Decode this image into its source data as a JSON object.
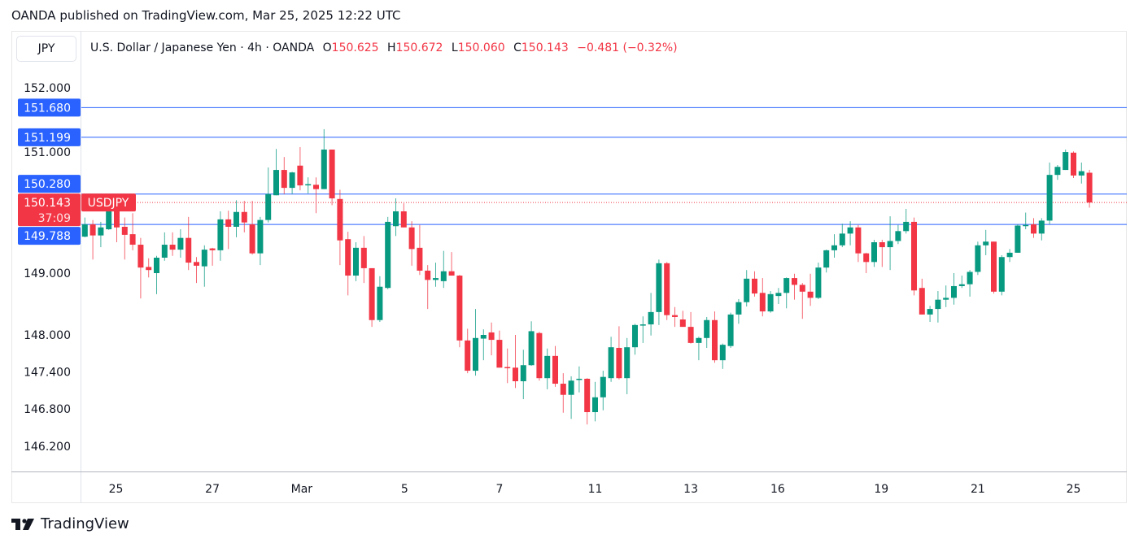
{
  "publisher_line": "OANDA published on TradingView.com, Mar 25, 2025 12:22 UTC",
  "symbol_button": "JPY",
  "legend": {
    "title": "U.S. Dollar / Japanese Yen · 4h · OANDA",
    "o_label": "O",
    "o": "150.625",
    "h_label": "H",
    "h": "150.672",
    "l_label": "L",
    "l": "150.060",
    "c_label": "C",
    "c": "150.143",
    "change": "−0.481 (−0.32%)"
  },
  "footer_logo": "TradingView",
  "colors": {
    "up": "#089981",
    "down": "#f23645",
    "level": "#2962ff",
    "text": "#131722"
  },
  "chart_data": {
    "type": "candlestick",
    "title": "U.S. Dollar / Japanese Yen · 4h · OANDA",
    "ylim": [
      145.68,
      152.53
    ],
    "y_ticks": [
      "152.000",
      "151.000",
      "149.000",
      "148.000",
      "147.400",
      "146.800",
      "146.200"
    ],
    "y_tick_values": [
      152,
      151,
      149,
      148,
      147.4,
      146.8,
      146.2
    ],
    "x_ticks": [
      {
        "label": "25",
        "index": 3.9
      },
      {
        "label": "27",
        "index": 16
      },
      {
        "label": "Mar",
        "index": 27.2
      },
      {
        "label": "5",
        "index": 40.1
      },
      {
        "label": "7",
        "index": 52
      },
      {
        "label": "11",
        "index": 64
      },
      {
        "label": "13",
        "index": 76
      },
      {
        "label": "16",
        "index": 86.9
      },
      {
        "label": "19",
        "index": 99.9
      },
      {
        "label": "21",
        "index": 112
      },
      {
        "label": "25",
        "index": 124
      }
    ],
    "levels": [
      {
        "value": 151.68,
        "label": "151.680"
      },
      {
        "value": 151.199,
        "label": "151.199"
      },
      {
        "value": 150.28,
        "label": "150.280"
      },
      {
        "value": 149.788,
        "label": "149.788"
      }
    ],
    "current": {
      "value": 150.143,
      "label": "150.143",
      "countdown": "37:09",
      "symbol": "USDJPY"
    },
    "ohlc": [
      [
        149.59,
        149.9,
        149.58,
        149.79
      ],
      [
        149.79,
        149.86,
        149.22,
        149.61
      ],
      [
        149.61,
        149.83,
        149.42,
        149.74
      ],
      [
        149.71,
        150.1,
        149.7,
        150.05
      ],
      [
        150.04,
        150.05,
        149.5,
        149.74
      ],
      [
        149.75,
        149.9,
        149.22,
        149.62
      ],
      [
        149.63,
        149.97,
        149.37,
        149.46
      ],
      [
        149.46,
        149.57,
        148.59,
        149.09
      ],
      [
        149.1,
        149.24,
        148.93,
        149.05
      ],
      [
        149.0,
        149.28,
        148.66,
        149.25
      ],
      [
        149.25,
        149.66,
        149.2,
        149.46
      ],
      [
        149.46,
        149.66,
        149.28,
        149.38
      ],
      [
        149.38,
        149.71,
        149.25,
        149.57
      ],
      [
        149.57,
        149.91,
        149.05,
        149.17
      ],
      [
        149.18,
        149.26,
        148.84,
        149.12
      ],
      [
        149.11,
        149.45,
        148.78,
        149.38
      ],
      [
        149.4,
        149.41,
        149.12,
        149.37
      ],
      [
        149.37,
        150.0,
        149.2,
        149.87
      ],
      [
        149.87,
        150.01,
        149.39,
        149.75
      ],
      [
        149.75,
        150.18,
        149.58,
        149.99
      ],
      [
        149.99,
        150.17,
        149.66,
        149.82
      ],
      [
        149.79,
        150.17,
        149.3,
        149.32
      ],
      [
        149.32,
        149.91,
        149.13,
        149.86
      ],
      [
        149.86,
        150.71,
        149.82,
        150.28
      ],
      [
        150.26,
        151.01,
        150.26,
        150.67
      ],
      [
        150.67,
        150.88,
        150.28,
        150.38
      ],
      [
        150.38,
        150.64,
        150.28,
        150.63
      ],
      [
        150.74,
        151.04,
        150.34,
        150.42
      ],
      [
        150.43,
        150.55,
        150.29,
        150.44
      ],
      [
        150.43,
        150.55,
        149.97,
        150.36
      ],
      [
        150.36,
        151.33,
        150.36,
        151.0
      ],
      [
        151.0,
        151.0,
        150.1,
        150.21
      ],
      [
        150.2,
        150.35,
        149.13,
        149.53
      ],
      [
        149.55,
        149.67,
        148.64,
        148.96
      ],
      [
        148.96,
        149.5,
        148.87,
        149.41
      ],
      [
        149.41,
        149.6,
        148.84,
        149.08
      ],
      [
        149.08,
        149.08,
        148.13,
        148.24
      ],
      [
        148.24,
        148.95,
        148.21,
        148.78
      ],
      [
        148.76,
        149.91,
        148.74,
        149.83
      ],
      [
        149.76,
        150.21,
        149.6,
        150.0
      ],
      [
        150.0,
        150.13,
        149.74,
        149.74
      ],
      [
        149.74,
        149.84,
        149.12,
        149.39
      ],
      [
        149.41,
        149.78,
        148.97,
        149.04
      ],
      [
        149.04,
        149.13,
        148.42,
        148.89
      ],
      [
        148.89,
        149.17,
        148.78,
        148.92
      ],
      [
        148.87,
        149.36,
        148.76,
        149.03
      ],
      [
        149.03,
        149.34,
        148.96,
        148.96
      ],
      [
        148.96,
        148.97,
        147.8,
        147.91
      ],
      [
        147.91,
        148.1,
        147.38,
        147.42
      ],
      [
        147.42,
        148.42,
        147.34,
        147.95
      ],
      [
        147.94,
        148.09,
        147.59,
        148.0
      ],
      [
        148.04,
        148.2,
        147.67,
        147.92
      ],
      [
        147.92,
        148.07,
        147.47,
        147.47
      ],
      [
        147.48,
        147.78,
        147.22,
        147.46
      ],
      [
        147.47,
        148.0,
        147.14,
        147.25
      ],
      [
        147.25,
        147.76,
        146.96,
        147.51
      ],
      [
        147.51,
        148.22,
        147.5,
        148.06
      ],
      [
        148.03,
        148.05,
        147.26,
        147.3
      ],
      [
        147.3,
        147.78,
        147.12,
        147.66
      ],
      [
        147.66,
        147.82,
        147.16,
        147.21
      ],
      [
        147.21,
        147.38,
        146.74,
        147.03
      ],
      [
        147.03,
        147.33,
        146.64,
        147.26
      ],
      [
        147.28,
        147.49,
        147.07,
        147.29
      ],
      [
        147.29,
        147.3,
        146.55,
        146.75
      ],
      [
        146.75,
        147.24,
        146.6,
        146.99
      ],
      [
        146.99,
        147.42,
        146.78,
        147.32
      ],
      [
        147.3,
        147.97,
        147.24,
        147.8
      ],
      [
        147.79,
        148.14,
        147.28,
        147.3
      ],
      [
        147.3,
        147.95,
        147.04,
        147.8
      ],
      [
        147.8,
        148.18,
        147.68,
        148.16
      ],
      [
        148.16,
        148.3,
        147.87,
        148.17
      ],
      [
        148.17,
        148.68,
        147.99,
        148.37
      ],
      [
        148.37,
        149.22,
        148.16,
        149.16
      ],
      [
        149.16,
        149.18,
        148.24,
        148.32
      ],
      [
        148.32,
        148.45,
        148.13,
        148.29
      ],
      [
        148.25,
        148.39,
        148.13,
        148.13
      ],
      [
        148.13,
        148.37,
        147.86,
        147.87
      ],
      [
        147.87,
        147.97,
        147.59,
        147.95
      ],
      [
        147.95,
        148.29,
        147.79,
        148.24
      ],
      [
        148.24,
        148.38,
        147.55,
        147.59
      ],
      [
        147.59,
        147.86,
        147.45,
        147.84
      ],
      [
        147.82,
        148.36,
        147.79,
        148.33
      ],
      [
        148.33,
        148.58,
        148.18,
        148.53
      ],
      [
        148.53,
        149.05,
        148.46,
        148.91
      ],
      [
        148.91,
        149.03,
        148.62,
        148.67
      ],
      [
        148.68,
        148.92,
        148.3,
        148.38
      ],
      [
        148.38,
        148.71,
        148.36,
        148.66
      ],
      [
        148.63,
        148.76,
        148.5,
        148.68
      ],
      [
        148.68,
        148.93,
        148.43,
        148.92
      ],
      [
        148.92,
        148.99,
        148.57,
        148.81
      ],
      [
        148.81,
        148.84,
        148.26,
        148.7
      ],
      [
        148.7,
        148.99,
        148.47,
        148.6
      ],
      [
        148.6,
        149.17,
        148.58,
        149.09
      ],
      [
        149.09,
        149.38,
        149.01,
        149.37
      ],
      [
        149.37,
        149.63,
        149.25,
        149.45
      ],
      [
        149.45,
        149.8,
        149.42,
        149.64
      ],
      [
        149.64,
        149.84,
        149.45,
        149.74
      ],
      [
        149.74,
        149.78,
        149.18,
        149.32
      ],
      [
        149.32,
        149.33,
        149.0,
        149.18
      ],
      [
        149.18,
        149.54,
        149.1,
        149.5
      ],
      [
        149.5,
        149.54,
        149.1,
        149.42
      ],
      [
        149.42,
        149.92,
        149.05,
        149.52
      ],
      [
        149.52,
        149.78,
        149.47,
        149.68
      ],
      [
        149.68,
        150.04,
        149.64,
        149.83
      ],
      [
        149.83,
        149.9,
        148.64,
        148.72
      ],
      [
        148.76,
        148.91,
        148.33,
        148.33
      ],
      [
        148.33,
        148.47,
        148.21,
        148.42
      ],
      [
        148.42,
        148.71,
        148.2,
        148.57
      ],
      [
        148.57,
        148.8,
        148.45,
        148.6
      ],
      [
        148.6,
        149.0,
        148.49,
        148.79
      ],
      [
        148.79,
        148.96,
        148.76,
        148.82
      ],
      [
        148.82,
        149.05,
        148.62,
        149.02
      ],
      [
        149.02,
        149.51,
        148.97,
        149.45
      ],
      [
        149.45,
        149.7,
        149.29,
        149.51
      ],
      [
        149.51,
        149.51,
        148.67,
        148.7
      ],
      [
        148.7,
        149.29,
        148.64,
        149.26
      ],
      [
        149.26,
        149.39,
        149.18,
        149.33
      ],
      [
        149.33,
        149.79,
        149.33,
        149.77
      ],
      [
        149.76,
        149.98,
        149.71,
        149.78
      ],
      [
        149.79,
        149.89,
        149.57,
        149.64
      ],
      [
        149.64,
        149.89,
        149.53,
        149.85
      ],
      [
        149.85,
        150.79,
        149.79,
        150.59
      ],
      [
        150.59,
        150.75,
        150.51,
        150.72
      ],
      [
        150.67,
        151.0,
        150.67,
        150.96
      ],
      [
        150.95,
        150.97,
        150.54,
        150.58
      ],
      [
        150.58,
        150.79,
        150.45,
        150.65
      ],
      [
        150.625,
        150.672,
        150.06,
        150.143
      ]
    ]
  }
}
